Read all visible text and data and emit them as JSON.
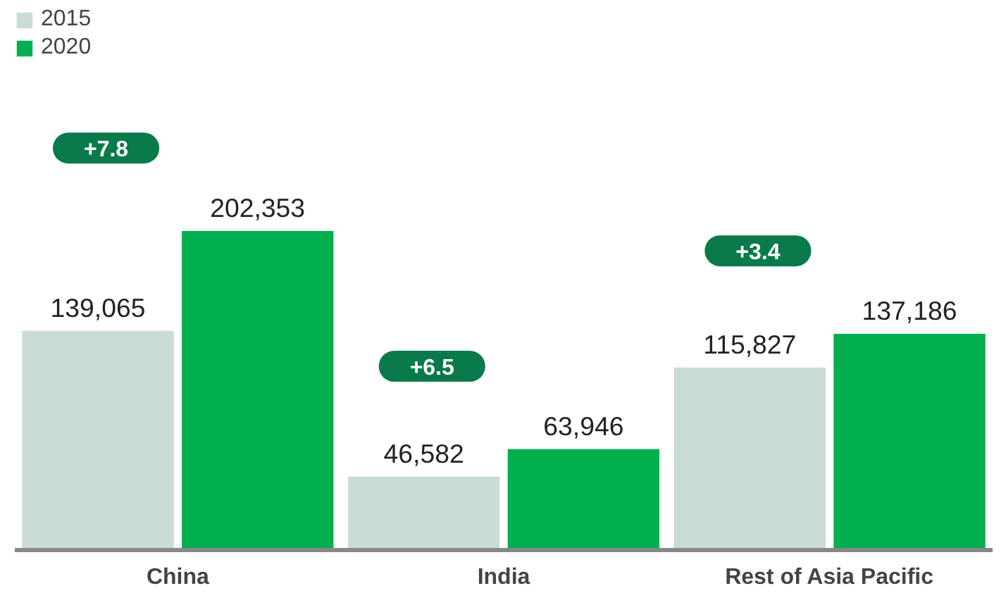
{
  "chart_data": {
    "type": "bar",
    "categories": [
      "China",
      "India",
      "Rest of Asia Pacific"
    ],
    "series": [
      {
        "name": "2015",
        "color": "#c9ddd5",
        "values": [
          139065,
          46582,
          115827
        ],
        "value_labels": [
          "139,065",
          "46,582",
          "115,827"
        ]
      },
      {
        "name": "2020",
        "color": "#00b04f",
        "values": [
          202353,
          63946,
          137186
        ],
        "value_labels": [
          "202,353",
          "63,946",
          "137,186"
        ]
      }
    ],
    "legend": "top left",
    "grid": false,
    "annotations": [
      "+7.8",
      "+6.5",
      "+3.4"
    ]
  }
}
